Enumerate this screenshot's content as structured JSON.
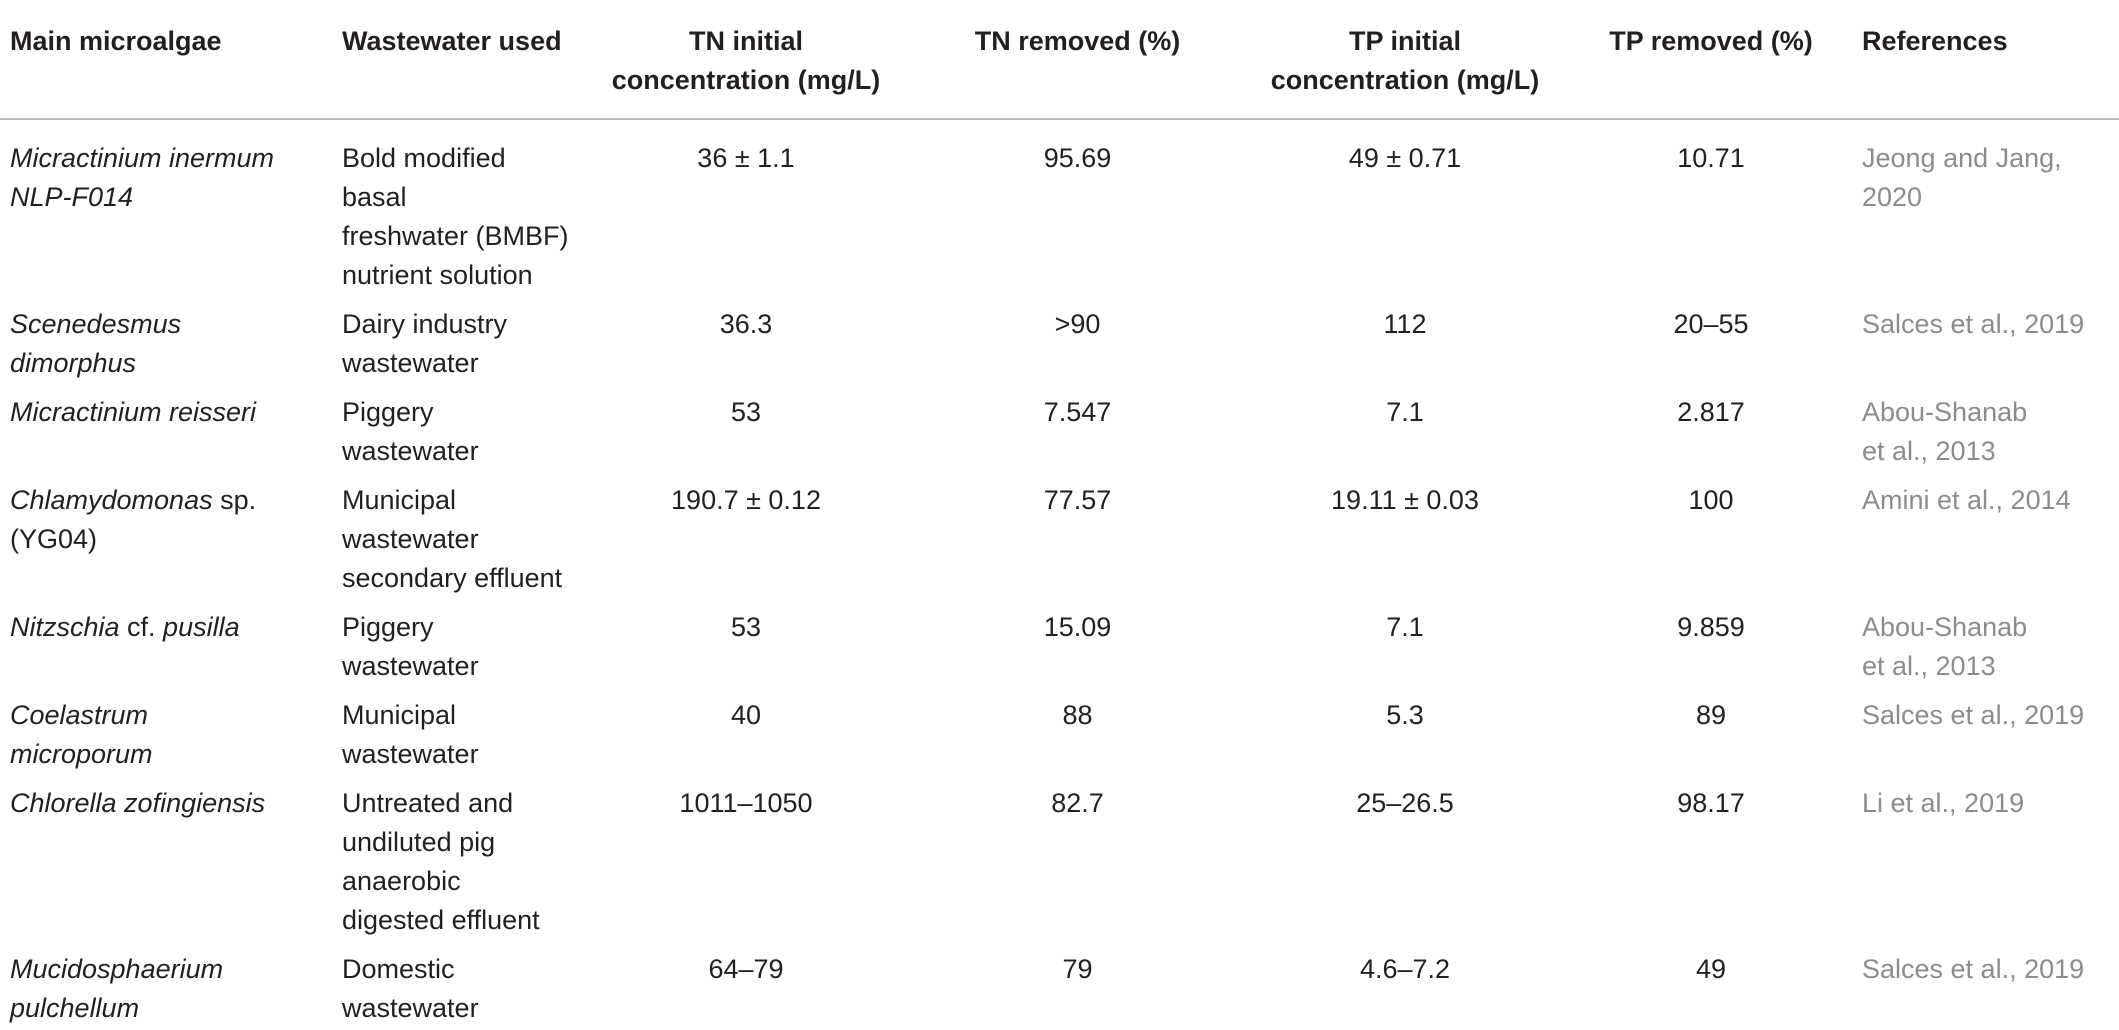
{
  "headers": [
    "Main microalgae",
    "Wastewater used",
    "TN initial concentration (mg/L)",
    "TN removed (%)",
    "TP initial concentration (mg/L)",
    "TP removed (%)",
    "References"
  ],
  "header_lines": {
    "tn_initial_1": "TN initial",
    "tn_initial_2": "concentration (mg/L)",
    "tp_initial_1": "TP initial",
    "tp_initial_2": "concentration (mg/L)"
  },
  "rows": [
    {
      "algae_1": "Micractinium inermum",
      "algae_2": "NLP-F014",
      "wastewater_1": "Bold modified basal",
      "wastewater_2": "freshwater (BMBF)",
      "wastewater_3": "nutrient solution",
      "tn_initial": "36 ± 1.1",
      "tn_removed": "95.69",
      "tp_initial": "49 ± 0.71",
      "tp_removed": "10.71",
      "ref_1": "Jeong and Jang,",
      "ref_2": "2020"
    },
    {
      "algae_1": "Scenedesmus",
      "algae_2": "dimorphus",
      "wastewater_1": "Dairy industry",
      "wastewater_2": "wastewater",
      "tn_initial": "36.3",
      "tn_removed": ">90",
      "tp_initial": "112",
      "tp_removed": "20–55",
      "ref_1": "Salces et al., 2019"
    },
    {
      "algae_1": "Micractinium reisseri",
      "wastewater_1": "Piggery wastewater",
      "tn_initial": "53",
      "tn_removed": "7.547",
      "tp_initial": "7.1",
      "tp_removed": "2.817",
      "ref_1": "Abou-Shanab",
      "ref_2": "et al., 2013"
    },
    {
      "algae_1_italic": "Chlamydomonas",
      "algae_1_rest": " sp.",
      "algae_2": "(YG04)",
      "wastewater_1": "Municipal wastewater",
      "wastewater_2": "secondary effluent",
      "tn_initial": "190.7 ± 0.12",
      "tn_removed": "77.57",
      "tp_initial": "19.11 ± 0.03",
      "tp_removed": "100",
      "ref_1": "Amini et al., 2014"
    },
    {
      "algae_1_italic": "Nitzschia",
      "algae_1_mid": " cf. ",
      "algae_1_italic2": "pusilla",
      "wastewater_1": "Piggery wastewater",
      "tn_initial": "53",
      "tn_removed": "15.09",
      "tp_initial": "7.1",
      "tp_removed": "9.859",
      "ref_1": "Abou-Shanab",
      "ref_2": "et al., 2013"
    },
    {
      "algae_1": "Coelastrum",
      "algae_2": "microporum",
      "wastewater_1": "Municipal wastewater",
      "tn_initial": "40",
      "tn_removed": "88",
      "tp_initial": "5.3",
      "tp_removed": "89",
      "ref_1": "Salces et al., 2019"
    },
    {
      "algae_1": "Chlorella zofingiensis",
      "wastewater_1": "Untreated and",
      "wastewater_2": "undiluted pig anaerobic",
      "wastewater_3": "digested effluent",
      "tn_initial": "1011–1050",
      "tn_removed": "82.7",
      "tp_initial": "25–26.5",
      "tp_removed": "98.17",
      "ref_1": "Li et al., 2019"
    },
    {
      "algae_1": "Mucidosphaerium",
      "algae_2": "pulchellum",
      "wastewater_1": "Domestic wastewater",
      "tn_initial": "64–79",
      "tn_removed": "79",
      "tp_initial": "4.6–7.2",
      "tp_removed": "49",
      "ref_1": "Salces et al., 2019"
    }
  ]
}
